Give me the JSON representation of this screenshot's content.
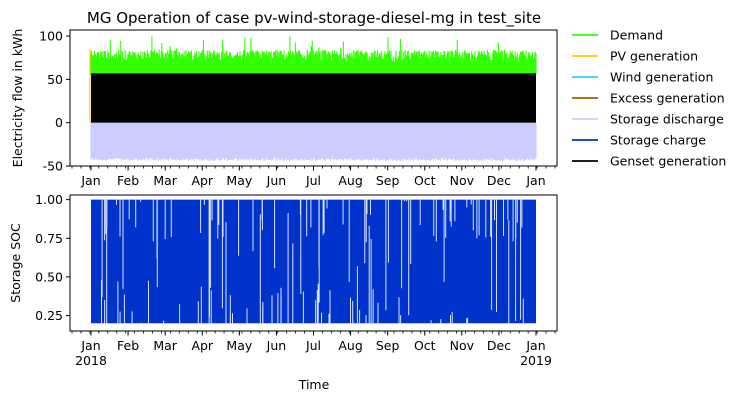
{
  "chart_data": [
    {
      "type": "line",
      "title": "MG Operation of case pv-wind-storage-diesel-mg in test_site",
      "xlabel": "",
      "ylabel": "Electricity flow in kWh",
      "ylim": [
        -50,
        107
      ],
      "yticks": [
        -50,
        0,
        50,
        100
      ],
      "xlim": [
        "2017-12-26",
        "2019-01-06"
      ],
      "x_tick_labels": [
        "Jan",
        "Feb",
        "Mar",
        "Apr",
        "May",
        "Jun",
        "Jul",
        "Aug",
        "Sep",
        "Oct",
        "Nov",
        "Dec",
        "Jan"
      ],
      "grid": false,
      "legend_placement": "outside-right",
      "series": [
        {
          "name": "Demand",
          "color": "#33ff00",
          "base": 72,
          "peak": 100,
          "low": 55
        },
        {
          "name": "PV generation",
          "color": "#ffcc00",
          "base": 60,
          "peak": 90,
          "low": 0
        },
        {
          "name": "Wind generation",
          "color": "#33ccff",
          "base": 0,
          "peak": 10,
          "low": 0
        },
        {
          "name": "Excess generation",
          "color": "#996600",
          "base": 0,
          "peak": 5,
          "low": 0
        },
        {
          "name": "Storage discharge",
          "color": "#ccccff",
          "base": -45,
          "peak": 0,
          "low": -45
        },
        {
          "name": "Storage charge",
          "color": "#0033cc",
          "base": 0,
          "peak": 5,
          "low": 0
        },
        {
          "name": "Genset generation",
          "color": "#000000",
          "base": 57,
          "peak": 57,
          "low": 0
        }
      ]
    },
    {
      "type": "area",
      "title": "",
      "xlabel": "Time",
      "ylabel": "Storage SOC",
      "ylim": [
        0.15,
        1.03
      ],
      "yticks": [
        "0.25",
        "0.50",
        "0.75",
        "1.00"
      ],
      "xlim": [
        "2017-12-26",
        "2019-01-06"
      ],
      "x_tick_labels": [
        "Jan",
        "Feb",
        "Mar",
        "Apr",
        "May",
        "Jun",
        "Jul",
        "Aug",
        "Sep",
        "Oct",
        "Nov",
        "Dec",
        "Jan"
      ],
      "x_year_labels": [
        "2018",
        "2019"
      ],
      "grid": false,
      "series": [
        {
          "name": "Storage SOC",
          "color": "#0033cc",
          "min": 0.2,
          "max": 1.0
        }
      ]
    }
  ]
}
